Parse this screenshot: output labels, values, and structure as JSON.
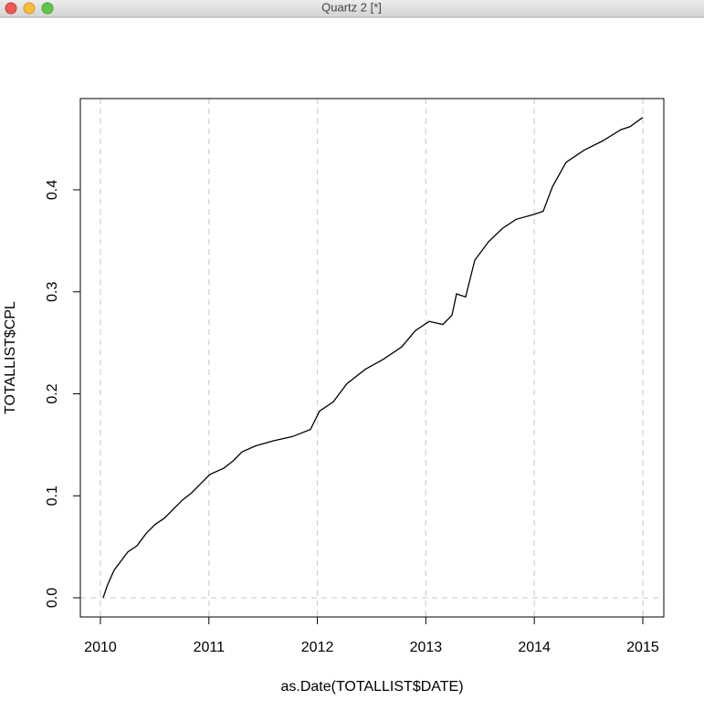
{
  "window": {
    "title": "Quartz 2 [*]"
  },
  "chart_data": {
    "type": "line",
    "xlabel": "as.Date(TOTALLIST$DATE)",
    "ylabel": "TOTALLIST$CPL",
    "x": [
      2010.025,
      2010.067,
      2010.126,
      2010.168,
      2010.253,
      2010.337,
      2010.421,
      2010.505,
      2010.589,
      2010.673,
      2010.758,
      2010.842,
      2010.926,
      2011.01,
      2011.136,
      2011.221,
      2011.305,
      2011.431,
      2011.599,
      2011.768,
      2011.936,
      2012.02,
      2012.146,
      2012.273,
      2012.441,
      2012.609,
      2012.778,
      2012.904,
      2013.03,
      2013.157,
      2013.241,
      2013.283,
      2013.367,
      2013.451,
      2013.577,
      2013.704,
      2013.83,
      2013.998,
      2014.082,
      2014.167,
      2014.293,
      2014.461,
      2014.63,
      2014.798,
      2014.882,
      2015.0
    ],
    "series": [
      {
        "color": "#000000",
        "values": [
          0,
          0.013,
          0.027,
          0.033,
          0.045,
          0.051,
          0.063,
          0.072,
          0.078,
          0.087,
          0.096,
          0.103,
          0.112,
          0.121,
          0.127,
          0.134,
          0.143,
          0.149,
          0.154,
          0.158,
          0.165,
          0.183,
          0.192,
          0.21,
          0.224,
          0.234,
          0.246,
          0.262,
          0.271,
          0.268,
          0.277,
          0.298,
          0.295,
          0.331,
          0.349,
          0.362,
          0.371,
          0.376,
          0.379,
          0.403,
          0.427,
          0.439,
          0.448,
          0.459,
          0.462,
          0.471
        ]
      }
    ],
    "xlim": [
      2009.815,
      2015.194
    ],
    "xticks": [
      2010,
      2011,
      2012,
      2013,
      2014,
      2015
    ],
    "ylim": [
      -0.0188,
      0.4895
    ],
    "yticks": [
      {
        "value": 0,
        "label": "0.0"
      },
      0.1,
      0.2,
      0.3,
      0.4
    ],
    "grid": {
      "x": true,
      "y": false
    },
    "hline": 0
  }
}
